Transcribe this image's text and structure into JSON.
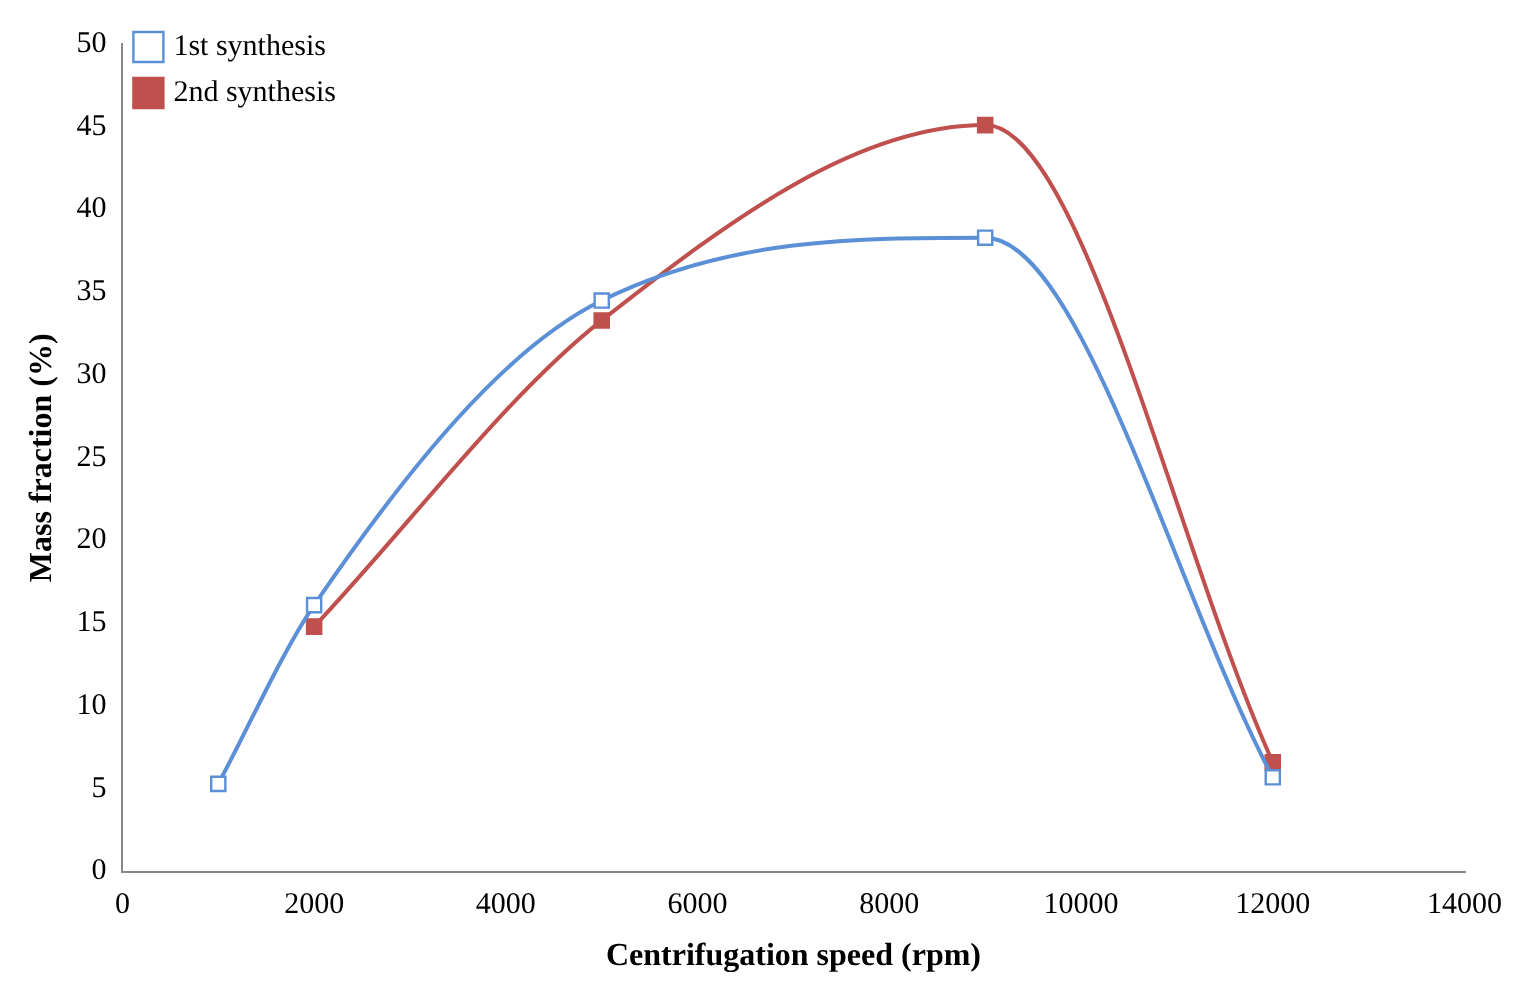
{
  "chart_data": {
    "type": "line",
    "xlabel": "Centrifugation speed (rpm)",
    "ylabel": "Mass fraction (%)",
    "xlim": [
      0,
      14000
    ],
    "xticks": [
      0,
      2000,
      4000,
      6000,
      8000,
      10000,
      12000,
      14000
    ],
    "ylim": [
      0,
      50
    ],
    "yticks": [
      0,
      5,
      10,
      15,
      20,
      25,
      30,
      35,
      40,
      45,
      50
    ],
    "series": [
      {
        "name": "1st synthesis",
        "color": "#5b8fd6",
        "x": [
          1000,
          2000,
          5000,
          9000,
          12000
        ],
        "values": [
          5.3,
          16.1,
          34.5,
          38.3,
          5.7
        ],
        "marker": "square"
      },
      {
        "name": "2nd synthesis",
        "color": "#c0504d",
        "x": [
          2000,
          5000,
          9000,
          12000
        ],
        "values": [
          14.8,
          33.3,
          45.1,
          6.6
        ],
        "marker": "square"
      }
    ],
    "legend": "top left",
    "grid": false
  }
}
